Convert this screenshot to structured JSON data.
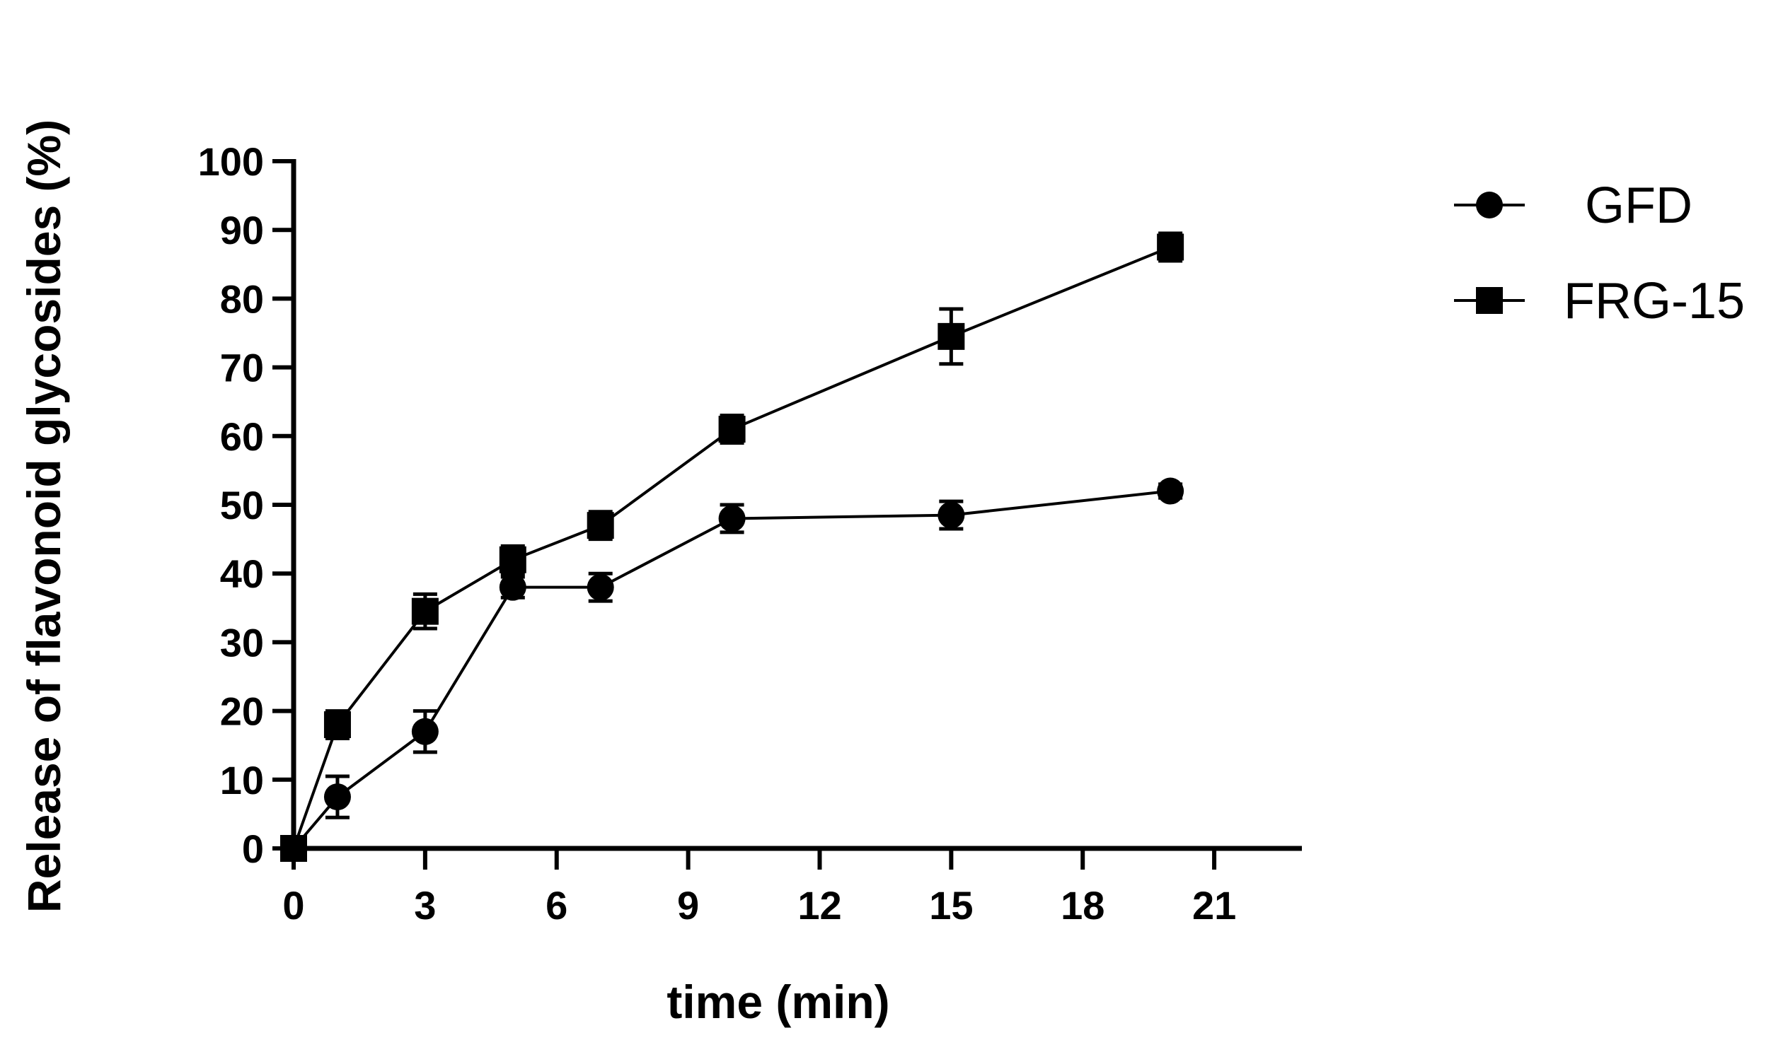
{
  "chart_data": {
    "type": "line",
    "title": "",
    "xlabel": "time (min)",
    "ylabel": "Release of flavonoid glycosides (%)",
    "xlim": [
      0,
      23
    ],
    "ylim": [
      0,
      100
    ],
    "xticks": [
      0,
      3,
      6,
      9,
      12,
      15,
      18,
      21
    ],
    "yticks": [
      0,
      10,
      20,
      30,
      40,
      50,
      60,
      70,
      80,
      90,
      100
    ],
    "legend_position": "right",
    "series": [
      {
        "name": "GFD",
        "marker": "circle",
        "x": [
          0,
          1,
          3,
          5,
          7,
          10,
          15,
          20
        ],
        "y": [
          0,
          7.5,
          17,
          38,
          38,
          48,
          48.5,
          52
        ],
        "err": [
          0,
          3,
          3,
          1.5,
          2,
          2,
          2,
          1
        ]
      },
      {
        "name": "FRG-15",
        "marker": "square",
        "x": [
          0,
          1,
          3,
          5,
          7,
          10,
          15,
          20
        ],
        "y": [
          0,
          18,
          34.5,
          42,
          47,
          61,
          74.5,
          87.5
        ],
        "err": [
          0,
          2,
          2.5,
          2,
          2,
          2,
          4,
          2
        ]
      }
    ]
  }
}
